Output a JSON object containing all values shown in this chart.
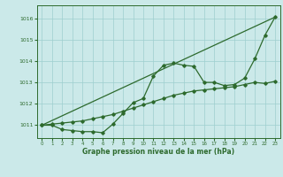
{
  "background_color": "#cbe9e9",
  "grid_color": "#9ecfcf",
  "line_color": "#2d6a2d",
  "xlabel": "Graphe pression niveau de la mer (hPa)",
  "xlim": [
    -0.5,
    23.5
  ],
  "ylim": [
    1010.4,
    1016.6
  ],
  "yticks": [
    1011,
    1012,
    1013,
    1014,
    1015,
    1016
  ],
  "xticks": [
    0,
    1,
    2,
    3,
    4,
    5,
    6,
    7,
    8,
    9,
    10,
    11,
    12,
    13,
    14,
    15,
    16,
    17,
    18,
    19,
    20,
    21,
    22,
    23
  ],
  "series1_x": [
    0,
    1,
    2,
    3,
    4,
    5,
    6,
    7,
    8,
    9,
    10,
    11,
    12,
    13,
    14,
    15,
    16,
    17,
    18,
    19,
    20,
    21,
    22,
    23
  ],
  "series1_y": [
    1011.0,
    1011.0,
    1010.8,
    1010.75,
    1010.7,
    1010.7,
    1010.65,
    1011.05,
    1011.55,
    1012.05,
    1012.25,
    1013.3,
    1013.8,
    1013.9,
    1013.8,
    1013.75,
    1013.0,
    1013.0,
    1012.85,
    1012.9,
    1013.2,
    1014.1,
    1015.2,
    1016.05
  ],
  "series2_x": [
    0,
    23
  ],
  "series2_y": [
    1011.0,
    1016.05
  ],
  "series3_x": [
    0,
    1,
    2,
    3,
    4,
    5,
    6,
    7,
    8,
    9,
    10,
    11,
    12,
    13,
    14,
    15,
    16,
    17,
    18,
    19,
    20,
    21,
    22,
    23
  ],
  "series3_y": [
    1011.0,
    1011.05,
    1011.1,
    1011.15,
    1011.2,
    1011.3,
    1011.4,
    1011.5,
    1011.65,
    1011.8,
    1011.95,
    1012.1,
    1012.25,
    1012.4,
    1012.5,
    1012.6,
    1012.65,
    1012.7,
    1012.75,
    1012.8,
    1012.9,
    1013.0,
    1012.95,
    1013.05
  ]
}
